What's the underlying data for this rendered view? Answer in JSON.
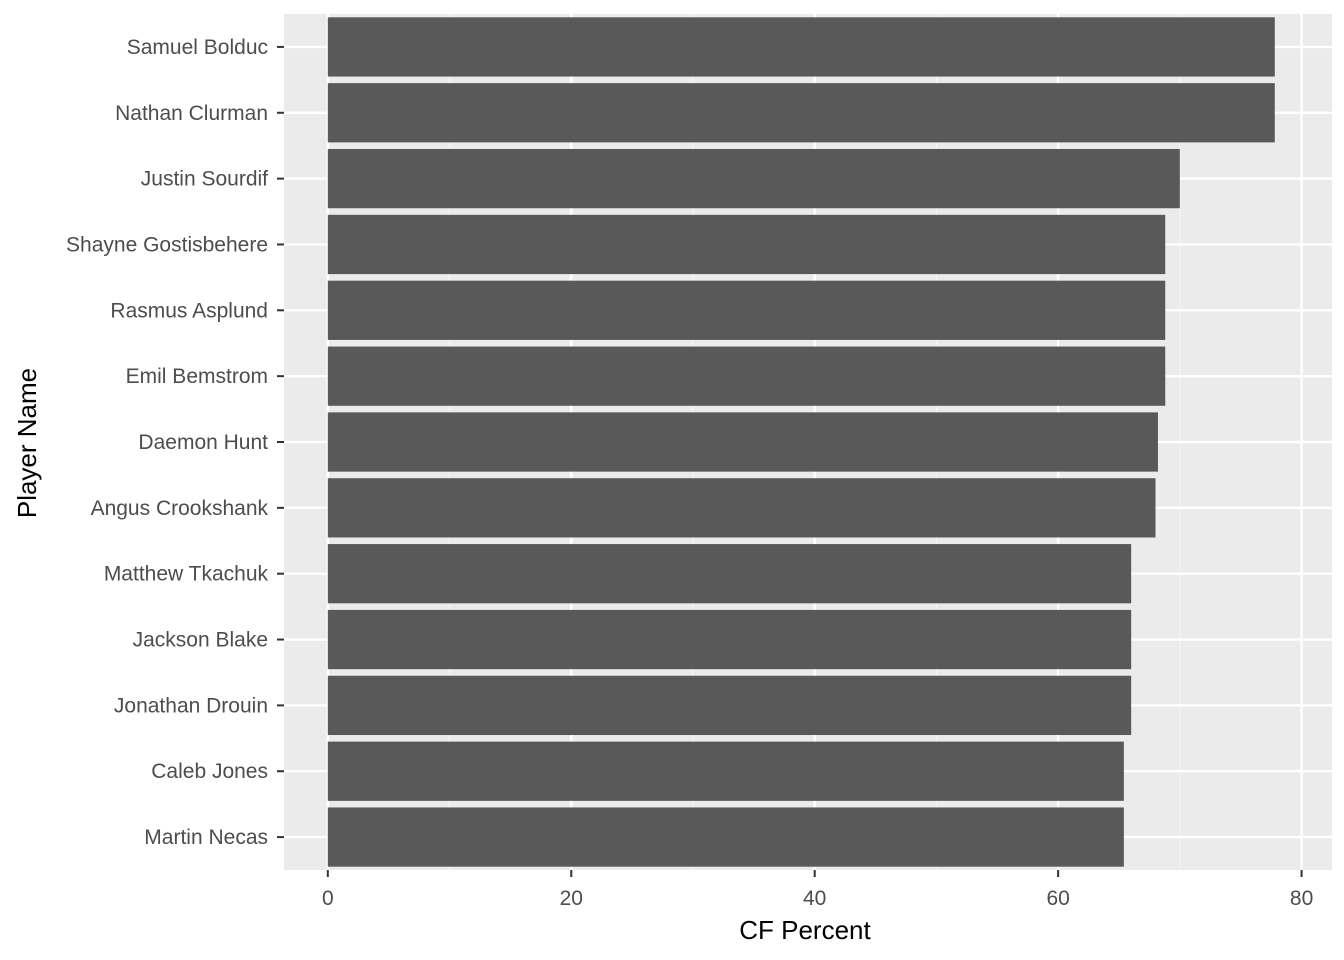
{
  "chart_data": {
    "type": "bar",
    "orientation": "horizontal",
    "title": "",
    "xlabel": "CF Percent",
    "ylabel": "Player Name",
    "xlim": [
      -3.6,
      82.5
    ],
    "x_ticks": [
      0,
      20,
      40,
      60,
      80
    ],
    "grid": true,
    "legend": "none",
    "categories": [
      "Samuel Bolduc",
      "Nathan Clurman",
      "Justin Sourdif",
      "Shayne Gostisbehere",
      "Rasmus Asplund",
      "Emil Bemstrom",
      "Daemon Hunt",
      "Angus Crookshank",
      "Matthew Tkachuk",
      "Jackson Blake",
      "Jonathan Drouin",
      "Caleb Jones",
      "Martin Necas"
    ],
    "values": [
      77.8,
      77.8,
      70.0,
      68.8,
      68.8,
      68.8,
      68.2,
      68.0,
      66.0,
      66.0,
      66.0,
      65.4,
      65.4
    ]
  },
  "colors": {
    "panel_background": "#ebebeb",
    "grid_major": "#ffffff",
    "grid_minor": "#f5f5f5",
    "bar_fill": "#595959",
    "tick_text": "#4d4d4d",
    "axis_title": "#000000"
  }
}
